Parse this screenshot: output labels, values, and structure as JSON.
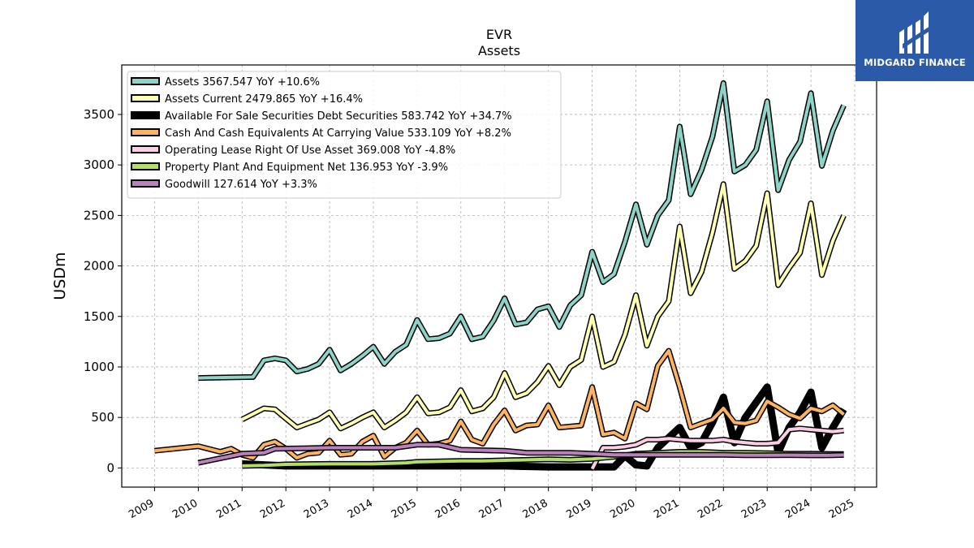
{
  "chart_data": {
    "type": "line",
    "title": "EVR",
    "subtitle": "Assets",
    "xlabel": "",
    "ylabel": "USDm",
    "xlim": [
      2008.25,
      2025.5
    ],
    "ylim": [
      -190,
      3990
    ],
    "x_ticks": [
      "2009",
      "2010",
      "2011",
      "2012",
      "2013",
      "2014",
      "2015",
      "2016",
      "2017",
      "2018",
      "2019",
      "2020",
      "2021",
      "2022",
      "2023",
      "2024",
      "2025"
    ],
    "y_ticks": [
      0,
      500,
      1000,
      1500,
      2000,
      2500,
      3000,
      3500
    ],
    "grid": true,
    "legend_position": "top-left",
    "series": [
      {
        "name": "Assets",
        "legend": "Assets  3567.547 YoY +10.6%",
        "color": "#8dd3c7",
        "x": [
          2010.0,
          2011.25,
          2011.5,
          2011.75,
          2012.0,
          2012.25,
          2012.5,
          2012.75,
          2013.0,
          2013.25,
          2013.5,
          2013.75,
          2014.0,
          2014.25,
          2014.5,
          2014.75,
          2015.0,
          2015.25,
          2015.5,
          2015.75,
          2016.0,
          2016.25,
          2016.5,
          2016.75,
          2017.0,
          2017.25,
          2017.5,
          2017.75,
          2018.0,
          2018.25,
          2018.5,
          2018.75,
          2019.0,
          2019.25,
          2019.5,
          2019.75,
          2020.0,
          2020.25,
          2020.5,
          2020.75,
          2021.0,
          2021.25,
          2021.5,
          2021.75,
          2022.0,
          2022.25,
          2022.5,
          2022.75,
          2023.0,
          2023.25,
          2023.5,
          2023.75,
          2024.0,
          2024.25,
          2024.5,
          2024.75
        ],
        "y": [
          890,
          900,
          1065,
          1085,
          1065,
          955,
          980,
          1030,
          1170,
          965,
          1030,
          1110,
          1200,
          1030,
          1150,
          1220,
          1465,
          1275,
          1285,
          1330,
          1500,
          1275,
          1300,
          1460,
          1680,
          1420,
          1440,
          1570,
          1600,
          1395,
          1610,
          1710,
          2140,
          1840,
          1920,
          2240,
          2610,
          2210,
          2500,
          2650,
          3380,
          2710,
          2950,
          3280,
          3810,
          2935,
          3000,
          3150,
          3630,
          2750,
          3050,
          3230,
          3710,
          2990,
          3340,
          3590
        ]
      },
      {
        "name": "Assets Current",
        "legend": "Assets Current  2479.865 YoY +16.4%",
        "color": "#ffffb3",
        "x": [
          2011.0,
          2011.5,
          2011.75,
          2012.0,
          2012.25,
          2012.5,
          2012.75,
          2013.0,
          2013.25,
          2013.5,
          2013.75,
          2014.0,
          2014.25,
          2014.5,
          2014.75,
          2015.0,
          2015.25,
          2015.5,
          2015.75,
          2016.0,
          2016.25,
          2016.5,
          2016.75,
          2017.0,
          2017.25,
          2017.5,
          2017.75,
          2018.0,
          2018.25,
          2018.5,
          2018.75,
          2019.0,
          2019.25,
          2019.5,
          2019.75,
          2020.0,
          2020.25,
          2020.5,
          2020.75,
          2021.0,
          2021.25,
          2021.5,
          2021.75,
          2022.0,
          2022.25,
          2022.5,
          2022.75,
          2023.0,
          2023.25,
          2023.5,
          2023.75,
          2024.0,
          2024.25,
          2024.5,
          2024.75
        ],
        "y": [
          480,
          590,
          580,
          490,
          400,
          440,
          480,
          550,
          390,
          440,
          500,
          550,
          400,
          470,
          550,
          700,
          540,
          550,
          600,
          770,
          560,
          590,
          700,
          940,
          700,
          740,
          850,
          1010,
          820,
          1000,
          1070,
          1500,
          1000,
          1050,
          1320,
          1710,
          1210,
          1500,
          1650,
          2390,
          1730,
          1940,
          2330,
          2810,
          1970,
          2050,
          2200,
          2720,
          1810,
          1980,
          2130,
          2620,
          1910,
          2250,
          2500
        ]
      },
      {
        "name": "Available For Sale Securities Debt Securities",
        "legend": "Available For Sale Securities Debt Securities  583.742 YoY +34.7%",
        "color": "#000000",
        "x": [
          2011.0,
          2012.0,
          2013.0,
          2014.0,
          2015.0,
          2016.0,
          2017.0,
          2018.0,
          2019.0,
          2019.5,
          2019.75,
          2020.0,
          2020.25,
          2020.5,
          2020.75,
          2021.0,
          2021.25,
          2021.5,
          2021.75,
          2022.0,
          2022.25,
          2022.5,
          2022.75,
          2023.0,
          2023.25,
          2023.5,
          2023.75,
          2024.0,
          2024.25,
          2024.5,
          2024.75
        ],
        "y": [
          40,
          20,
          20,
          20,
          20,
          20,
          20,
          10,
          10,
          10,
          120,
          30,
          20,
          200,
          300,
          400,
          200,
          250,
          450,
          700,
          250,
          500,
          650,
          800,
          150,
          400,
          550,
          750,
          200,
          400,
          580
        ]
      },
      {
        "name": "Cash And Cash Equivalents At Carrying Value",
        "legend": "Cash And Cash Equivalents At Carrying Value  533.109 YoY +8.2%",
        "color": "#fdb462",
        "x": [
          2009.0,
          2010.0,
          2010.5,
          2010.75,
          2011.0,
          2011.25,
          2011.5,
          2011.75,
          2012.0,
          2012.25,
          2012.5,
          2012.75,
          2013.0,
          2013.25,
          2013.5,
          2013.75,
          2014.0,
          2014.25,
          2014.5,
          2014.75,
          2015.0,
          2015.25,
          2015.5,
          2015.75,
          2016.0,
          2016.25,
          2016.5,
          2016.75,
          2017.0,
          2017.25,
          2017.5,
          2017.75,
          2018.0,
          2018.25,
          2018.5,
          2018.75,
          2019.0,
          2019.25,
          2019.5,
          2019.75,
          2020.0,
          2020.25,
          2020.5,
          2020.75,
          2021.0,
          2021.25,
          2021.5,
          2021.75,
          2022.0,
          2022.25,
          2022.5,
          2022.75,
          2023.0,
          2023.25,
          2023.5,
          2023.75,
          2024.0,
          2024.25,
          2024.5,
          2024.75
        ],
        "y": [
          170,
          215,
          160,
          190,
          130,
          100,
          230,
          260,
          190,
          100,
          140,
          150,
          270,
          130,
          140,
          260,
          320,
          110,
          200,
          250,
          370,
          230,
          240,
          270,
          460,
          280,
          240,
          430,
          570,
          370,
          420,
          430,
          620,
          400,
          410,
          420,
          800,
          330,
          350,
          290,
          640,
          580,
          1010,
          1160,
          800,
          400,
          440,
          480,
          590,
          450,
          440,
          470,
          660,
          600,
          530,
          490,
          590,
          560,
          620,
          530
        ]
      },
      {
        "name": "Operating Lease Right Of Use Asset",
        "legend": "Operating Lease Right Of Use Asset  369.008 YoY -4.8%",
        "color": "#fccde5",
        "x": [
          2019.0,
          2019.25,
          2019.5,
          2019.75,
          2020.0,
          2020.25,
          2020.5,
          2020.75,
          2021.0,
          2021.25,
          2021.5,
          2021.75,
          2022.0,
          2022.25,
          2022.5,
          2022.75,
          2023.0,
          2023.25,
          2023.5,
          2023.75,
          2024.0,
          2024.25,
          2024.5,
          2024.75
        ],
        "y": [
          -10,
          200,
          200,
          210,
          230,
          280,
          280,
          290,
          280,
          270,
          270,
          270,
          280,
          260,
          250,
          240,
          240,
          250,
          380,
          390,
          380,
          370,
          360,
          370
        ]
      },
      {
        "name": "Property Plant And Equipment Net",
        "legend": "Property Plant And Equipment Net  136.953 YoY -3.9%",
        "color": "#b3de69",
        "x": [
          2011.0,
          2011.5,
          2012.0,
          2013.0,
          2014.0,
          2014.75,
          2015.0,
          2016.0,
          2016.5,
          2017.0,
          2017.5,
          2018.0,
          2018.5,
          2019.0,
          2019.5,
          2020.0,
          2020.5,
          2021.0,
          2021.5,
          2022.0,
          2022.5,
          2023.0,
          2023.5,
          2024.0,
          2024.5,
          2024.75
        ],
        "y": [
          20,
          25,
          35,
          40,
          40,
          50,
          60,
          70,
          70,
          75,
          80,
          85,
          80,
          90,
          110,
          140,
          150,
          160,
          160,
          150,
          150,
          145,
          140,
          140,
          138,
          137
        ]
      },
      {
        "name": "Goodwill",
        "legend": "Goodwill  127.614 YoY +3.3%",
        "color": "#bc80bd",
        "x": [
          2010.0,
          2011.0,
          2011.5,
          2011.75,
          2012.5,
          2013.0,
          2013.5,
          2014.0,
          2014.5,
          2015.0,
          2015.5,
          2016.0,
          2016.5,
          2017.0,
          2017.5,
          2018.0,
          2018.5,
          2019.0,
          2019.5,
          2020.0,
          2020.5,
          2021.0,
          2021.5,
          2022.0,
          2022.5,
          2023.0,
          2023.5,
          2024.0,
          2024.5,
          2024.75
        ],
        "y": [
          50,
          140,
          150,
          190,
          195,
          200,
          200,
          200,
          200,
          230,
          230,
          180,
          175,
          170,
          150,
          150,
          150,
          140,
          130,
          130,
          130,
          130,
          130,
          130,
          125,
          125,
          127,
          124,
          125,
          128
        ]
      }
    ]
  },
  "logo": {
    "text": "MIDGARD FINANCE",
    "background": "#2a5aa8"
  }
}
